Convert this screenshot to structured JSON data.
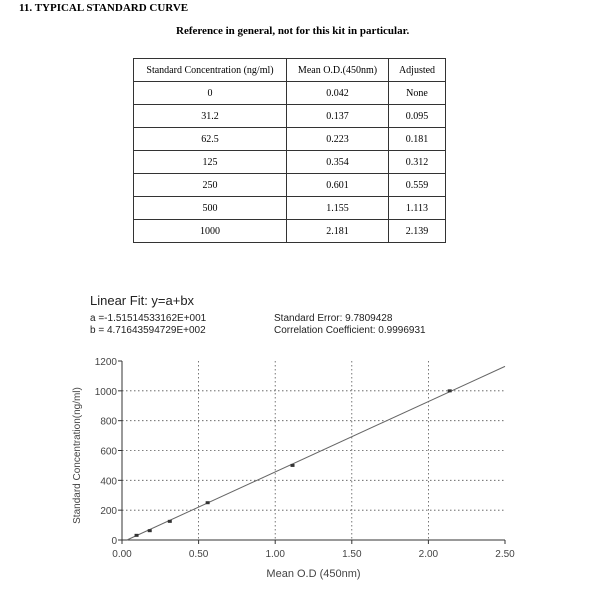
{
  "heading": "11. TYPICAL STANDARD CURVE",
  "subtitle": "Reference in general, not for this kit in particular.",
  "table": {
    "headers": [
      "Standard Concentration (ng/ml)",
      "Mean O.D.(450nm)",
      "Adjusted"
    ],
    "rows": [
      [
        "0",
        "0.042",
        "None"
      ],
      [
        "31.2",
        "0.137",
        "0.095"
      ],
      [
        "62.5",
        "0.223",
        "0.181"
      ],
      [
        "125",
        "0.354",
        "0.312"
      ],
      [
        "250",
        "0.601",
        "0.559"
      ],
      [
        "500",
        "1.155",
        "1.113"
      ],
      [
        "1000",
        "2.181",
        "2.139"
      ]
    ]
  },
  "fit": {
    "title": "Linear Fit: y=a+bx",
    "a": "a =-1.51514533162E+001",
    "b": "b = 4.71643594729E+002",
    "std_error": "Standard Error: 9.7809428",
    "corr": "Correlation Coefficient: 0.9996931"
  },
  "chart_data": {
    "type": "scatter",
    "xlabel": "Mean O.D (450nm)",
    "ylabel": "Standard Concentration(ng/ml)",
    "xlim": [
      0,
      2.5
    ],
    "ylim": [
      0,
      1200
    ],
    "xticks": [
      "0.00",
      "0.50",
      "1.00",
      "1.50",
      "2.00",
      "2.50"
    ],
    "yticks": [
      "0",
      "200",
      "400",
      "600",
      "800",
      "1000",
      "1200"
    ],
    "grid": true,
    "points": [
      {
        "x": 0.095,
        "y": 31.2
      },
      {
        "x": 0.181,
        "y": 62.5
      },
      {
        "x": 0.312,
        "y": 125
      },
      {
        "x": 0.559,
        "y": 250
      },
      {
        "x": 1.113,
        "y": 500
      },
      {
        "x": 2.139,
        "y": 1000
      }
    ],
    "fit_line": {
      "a": -15.1514533162,
      "b": 471.643594729
    },
    "colors": {
      "line": "#666666",
      "points": "#333333",
      "grid": "#555555"
    }
  }
}
